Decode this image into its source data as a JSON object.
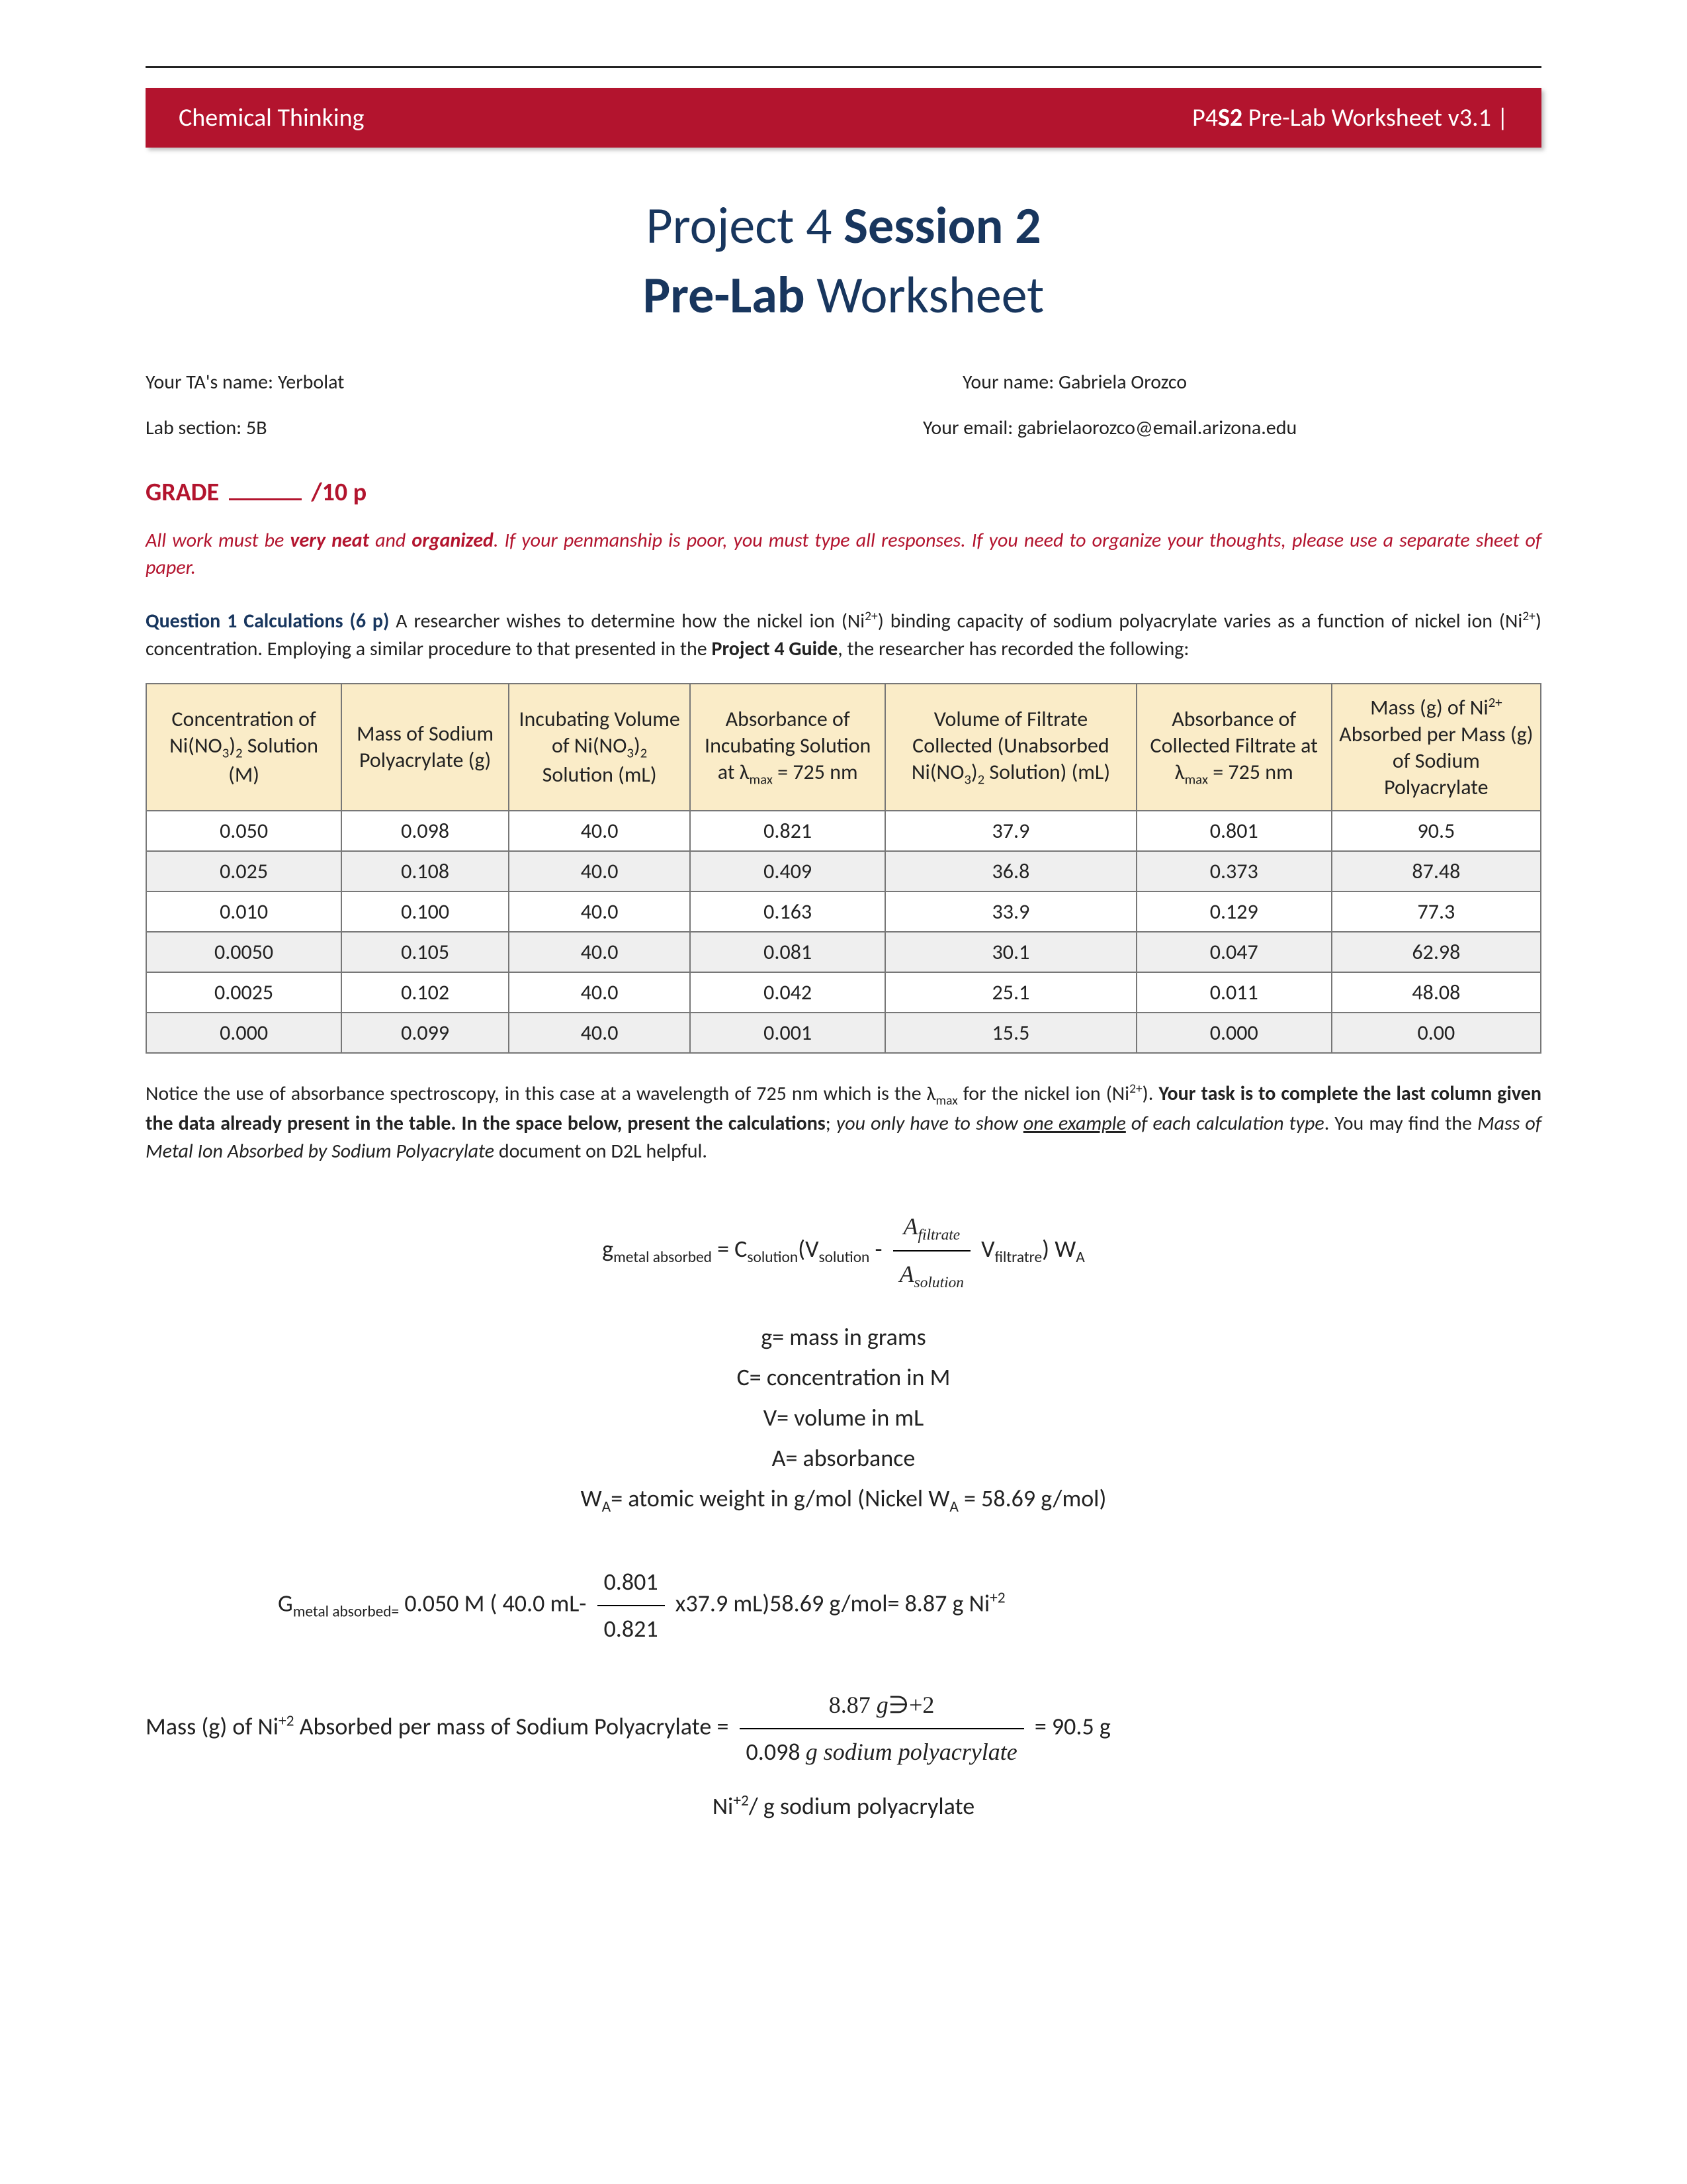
{
  "banner": {
    "left": "Chemical Thinking",
    "right_prefix": "P4",
    "right_bold": "S2",
    "right_suffix": " Pre-Lab Worksheet v3.1 |"
  },
  "title": {
    "line1a": "Project 4 ",
    "line1b": "Session 2",
    "line2a": "Pre-Lab",
    "line2b": " Worksheet"
  },
  "info": {
    "ta_label": "Your TA's name: ",
    "ta_value": "Yerbolat",
    "name_label": "Your name: ",
    "name_value": "Gabriela Orozco",
    "section_label": "Lab section: ",
    "section_value": "5B",
    "email_label": "Your email: ",
    "email_value": "gabrielaorozco@email.arizona.edu"
  },
  "grade": {
    "label_pre": "GRADE",
    "label_post": "/10 p"
  },
  "instructions": {
    "t1": "All work must be ",
    "b1": "very neat",
    "t2": " and ",
    "b2": "organized",
    "t3": ". If your penmanship is poor, you must type all responses. If you need to organize your thoughts, please use a separate sheet of paper."
  },
  "q1": {
    "head": "Question 1 Calculations (6 p)",
    "t1": "   A researcher wishes to determine how the nickel ion (Ni",
    "sup1": "2+",
    "t2": ") binding capacity of sodium polyacrylate varies as a function of nickel ion (Ni",
    "sup2": "2+",
    "t3": ") concentration. Employing a similar procedure to that presented in the ",
    "b1": "Project 4 Guide",
    "t4": ", the researcher has recorded the following:"
  },
  "table": {
    "columns": [
      "Concentration of Ni(NO<sub>3</sub>)<sub>2</sub> Solution (M)",
      "Mass of Sodium Polyacrylate (g)",
      "Incubating Volume of Ni(NO<sub>3</sub>)<sub>2</sub> Solution (mL)",
      "Absorbance of Incubating Solution at λ<sub>max</sub> = 725 nm",
      "Volume of Filtrate Collected (Unabsorbed Ni(NO<sub>3</sub>)<sub>2</sub> Solution) (mL)",
      "Absorbance of Collected Filtrate at λ<sub>max</sub> = 725 nm",
      "Mass (g) of Ni<sup>2+</sup> Absorbed per Mass (g) of Sodium Polyacrylate"
    ],
    "rows": [
      [
        "0.050",
        "0.098",
        "40.0",
        "0.821",
        "37.9",
        "0.801",
        "90.5"
      ],
      [
        "0.025",
        "0.108",
        "40.0",
        "0.409",
        "36.8",
        "0.373",
        "87.48"
      ],
      [
        "0.010",
        "0.100",
        "40.0",
        "0.163",
        "33.9",
        "0.129",
        "77.3"
      ],
      [
        "0.0050",
        "0.105",
        "40.0",
        "0.081",
        "30.1",
        "0.047",
        "62.98"
      ],
      [
        "0.0025",
        "0.102",
        "40.0",
        "0.042",
        "25.1",
        "0.011",
        "48.08"
      ],
      [
        "0.000",
        "0.099",
        "40.0",
        "0.001",
        "15.5",
        "0.000",
        "0.00"
      ]
    ],
    "col_widths": [
      "14%",
      "12%",
      "13%",
      "14%",
      "18%",
      "14%",
      "15%"
    ],
    "header_bg": "#faecc8",
    "border_color": "#777777",
    "alt_row_bg": "#efefef"
  },
  "post": {
    "t1": "Notice the use of absorbance spectroscopy, in this case at a wavelength of 725 nm which is the λ",
    "sub1": "max",
    "t2": " for the nickel ion (Ni",
    "sup1": "2+",
    "t3": "). ",
    "b1": "Your task is to complete the last column given the data already present in the table. In the space below, present the calculations",
    "t4": "; ",
    "i1": "you only have to show ",
    "u1": "one example",
    "i2": " of each calculation type",
    "t5": ". You may find the ",
    "i3": "Mass of Metal Ion Absorbed by Sodium Polyacrylate",
    "t6": " document on D2L helpful."
  },
  "formula": {
    "lhs": "g",
    "lhs_sub": "metal absorbed",
    "eq": " = C",
    "c_sub": "solution",
    "open": "(V",
    "v1_sub": "solution",
    "minus": " - ",
    "frac_num": "A",
    "frac_num_sub": "filtrate",
    "frac_den": "A",
    "frac_den_sub": "solution",
    "v2": "  V",
    "v2_sub": "filtratre",
    "close": ") W",
    "wa_sub": "A"
  },
  "defs": {
    "l1": "g= mass in grams",
    "l2": "C= concentration in M",
    "l3": "V= volume in mL",
    "l4": "A= absorbance",
    "l5a": "W",
    "l5sub": "A",
    "l5b": "= atomic weight in g/mol (Nickel W",
    "l5sub2": "A",
    "l5c": " = 58.69 g/mol)"
  },
  "calc2": {
    "lhs": "G",
    "lhs_sub": "metal absorbed=",
    "t1": " 0.050 M ( 40.0 mL- ",
    "num": "0.801",
    "den": "0.821",
    "t2": "  x37.9 mL)58.69 g/mol= 8.87 g Ni",
    "sup": "+2"
  },
  "calc3": {
    "lhs": "Mass (g) of Ni",
    "sup1": "+2",
    "t1": " Absorbed per mass of Sodium Polyacrylate = ",
    "num": "8.87 g∋+2",
    "den": "0.098 g sodium polyacrylate",
    "t2": "  = 90.5 g"
  },
  "calc4": {
    "t": "Ni",
    "sup": "+2",
    "t2": "/ g sodium polyacrylate"
  }
}
